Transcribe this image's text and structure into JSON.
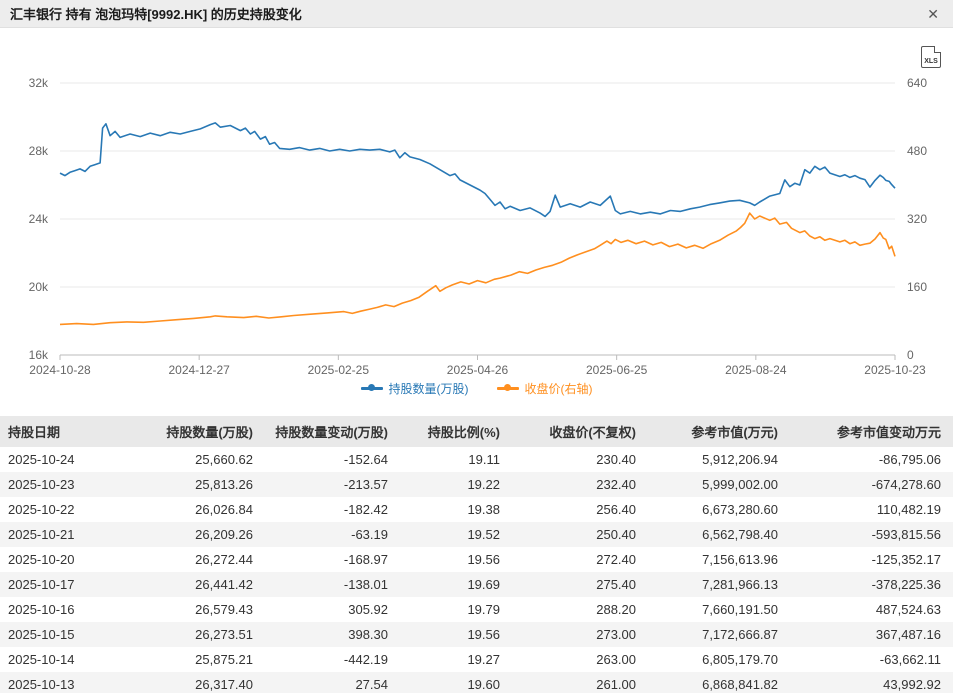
{
  "header": {
    "title": "汇丰银行 持有 泡泡玛特[9992.HK] 的历史持股变化",
    "close_label": "✕"
  },
  "toolbar": {
    "export_label": "XLS"
  },
  "chart_data": {
    "type": "line",
    "x_ticks": [
      "2024-10-28",
      "2024-12-27",
      "2025-02-25",
      "2025-04-26",
      "2025-06-25",
      "2025-08-24",
      "2025-10-23"
    ],
    "left_axis": {
      "ticks": [
        "16k",
        "20k",
        "24k",
        "28k",
        "32k"
      ],
      "min": 16000,
      "max": 32000
    },
    "right_axis": {
      "ticks": [
        "0",
        "160",
        "320",
        "480",
        "640"
      ],
      "min": 0,
      "max": 640
    },
    "grid": true,
    "legend_position": "bottom",
    "legend": [
      {
        "label": "持股数量(万股)",
        "color": "#2878b5"
      },
      {
        "label": "收盘价(右轴)",
        "color": "#ff8f1f"
      }
    ],
    "series": [
      {
        "name": "持股数量(万股)",
        "axis": "left",
        "color": "#2878b5",
        "points": [
          [
            0.0,
            26700
          ],
          [
            0.006,
            26550
          ],
          [
            0.012,
            26750
          ],
          [
            0.018,
            26850
          ],
          [
            0.024,
            26950
          ],
          [
            0.03,
            26800
          ],
          [
            0.036,
            27100
          ],
          [
            0.042,
            27200
          ],
          [
            0.048,
            27300
          ],
          [
            0.051,
            29350
          ],
          [
            0.055,
            29600
          ],
          [
            0.06,
            28900
          ],
          [
            0.066,
            29150
          ],
          [
            0.072,
            28800
          ],
          [
            0.084,
            29000
          ],
          [
            0.096,
            28850
          ],
          [
            0.108,
            29050
          ],
          [
            0.12,
            28900
          ],
          [
            0.132,
            29100
          ],
          [
            0.144,
            29000
          ],
          [
            0.156,
            29150
          ],
          [
            0.168,
            29300
          ],
          [
            0.18,
            29550
          ],
          [
            0.186,
            29650
          ],
          [
            0.192,
            29400
          ],
          [
            0.204,
            29500
          ],
          [
            0.216,
            29200
          ],
          [
            0.222,
            29350
          ],
          [
            0.228,
            29000
          ],
          [
            0.233,
            29150
          ],
          [
            0.24,
            28700
          ],
          [
            0.246,
            28850
          ],
          [
            0.251,
            28400
          ],
          [
            0.257,
            28500
          ],
          [
            0.263,
            28150
          ],
          [
            0.275,
            28100
          ],
          [
            0.287,
            28200
          ],
          [
            0.299,
            28050
          ],
          [
            0.311,
            28150
          ],
          [
            0.323,
            28000
          ],
          [
            0.335,
            28100
          ],
          [
            0.347,
            28000
          ],
          [
            0.359,
            28100
          ],
          [
            0.371,
            28050
          ],
          [
            0.383,
            28100
          ],
          [
            0.395,
            27950
          ],
          [
            0.401,
            28050
          ],
          [
            0.407,
            27600
          ],
          [
            0.413,
            27900
          ],
          [
            0.419,
            27650
          ],
          [
            0.431,
            27500
          ],
          [
            0.443,
            27250
          ],
          [
            0.455,
            26900
          ],
          [
            0.467,
            26550
          ],
          [
            0.473,
            26650
          ],
          [
            0.479,
            26300
          ],
          [
            0.491,
            26000
          ],
          [
            0.503,
            25700
          ],
          [
            0.509,
            25500
          ],
          [
            0.515,
            25150
          ],
          [
            0.521,
            24800
          ],
          [
            0.527,
            25000
          ],
          [
            0.533,
            24600
          ],
          [
            0.539,
            24750
          ],
          [
            0.551,
            24500
          ],
          [
            0.563,
            24650
          ],
          [
            0.575,
            24350
          ],
          [
            0.581,
            24150
          ],
          [
            0.587,
            24450
          ],
          [
            0.593,
            25400
          ],
          [
            0.599,
            24700
          ],
          [
            0.611,
            24900
          ],
          [
            0.623,
            24700
          ],
          [
            0.635,
            25000
          ],
          [
            0.647,
            24800
          ],
          [
            0.659,
            25350
          ],
          [
            0.665,
            24500
          ],
          [
            0.671,
            24300
          ],
          [
            0.683,
            24450
          ],
          [
            0.695,
            24300
          ],
          [
            0.707,
            24400
          ],
          [
            0.719,
            24300
          ],
          [
            0.731,
            24500
          ],
          [
            0.743,
            24450
          ],
          [
            0.755,
            24600
          ],
          [
            0.766,
            24700
          ],
          [
            0.778,
            24850
          ],
          [
            0.79,
            24950
          ],
          [
            0.802,
            25050
          ],
          [
            0.814,
            25100
          ],
          [
            0.826,
            24950
          ],
          [
            0.832,
            24800
          ],
          [
            0.838,
            25000
          ],
          [
            0.85,
            25350
          ],
          [
            0.862,
            25500
          ],
          [
            0.868,
            26300
          ],
          [
            0.874,
            25900
          ],
          [
            0.88,
            26100
          ],
          [
            0.886,
            26000
          ],
          [
            0.892,
            26900
          ],
          [
            0.898,
            26700
          ],
          [
            0.904,
            27100
          ],
          [
            0.91,
            26900
          ],
          [
            0.916,
            27050
          ],
          [
            0.922,
            26700
          ],
          [
            0.934,
            26500
          ],
          [
            0.94,
            26600
          ],
          [
            0.946,
            26450
          ],
          [
            0.952,
            26550
          ],
          [
            0.958,
            26400
          ],
          [
            0.964,
            26317
          ],
          [
            0.97,
            25875
          ],
          [
            0.976,
            26273
          ],
          [
            0.982,
            26579
          ],
          [
            0.986,
            26441
          ],
          [
            0.989,
            26272
          ],
          [
            0.993,
            26209
          ],
          [
            0.996,
            26026
          ],
          [
            1.0,
            25813
          ]
        ]
      },
      {
        "name": "收盘价(右轴)",
        "axis": "right",
        "color": "#ff8f1f",
        "points": [
          [
            0.0,
            72
          ],
          [
            0.02,
            74
          ],
          [
            0.04,
            72
          ],
          [
            0.06,
            76
          ],
          [
            0.08,
            78
          ],
          [
            0.1,
            77
          ],
          [
            0.12,
            80
          ],
          [
            0.14,
            83
          ],
          [
            0.16,
            86
          ],
          [
            0.18,
            90
          ],
          [
            0.186,
            92
          ],
          [
            0.2,
            90
          ],
          [
            0.22,
            88
          ],
          [
            0.235,
            91
          ],
          [
            0.25,
            87
          ],
          [
            0.265,
            90
          ],
          [
            0.28,
            93
          ],
          [
            0.3,
            96
          ],
          [
            0.32,
            99
          ],
          [
            0.34,
            102
          ],
          [
            0.35,
            98
          ],
          [
            0.36,
            103
          ],
          [
            0.371,
            108
          ],
          [
            0.38,
            112
          ],
          [
            0.39,
            118
          ],
          [
            0.4,
            114
          ],
          [
            0.41,
            122
          ],
          [
            0.42,
            128
          ],
          [
            0.43,
            136
          ],
          [
            0.44,
            150
          ],
          [
            0.45,
            163
          ],
          [
            0.455,
            150
          ],
          [
            0.462,
            158
          ],
          [
            0.47,
            165
          ],
          [
            0.48,
            172
          ],
          [
            0.49,
            167
          ],
          [
            0.5,
            175
          ],
          [
            0.51,
            170
          ],
          [
            0.52,
            178
          ],
          [
            0.527,
            181
          ],
          [
            0.54,
            188
          ],
          [
            0.55,
            196
          ],
          [
            0.56,
            192
          ],
          [
            0.57,
            200
          ],
          [
            0.58,
            206
          ],
          [
            0.59,
            211
          ],
          [
            0.6,
            218
          ],
          [
            0.61,
            228
          ],
          [
            0.62,
            236
          ],
          [
            0.63,
            243
          ],
          [
            0.64,
            250
          ],
          [
            0.647,
            258
          ],
          [
            0.655,
            268
          ],
          [
            0.66,
            262
          ],
          [
            0.665,
            272
          ],
          [
            0.672,
            265
          ],
          [
            0.68,
            270
          ],
          [
            0.69,
            262
          ],
          [
            0.7,
            268
          ],
          [
            0.71,
            259
          ],
          [
            0.72,
            265
          ],
          [
            0.73,
            255
          ],
          [
            0.74,
            261
          ],
          [
            0.75,
            252
          ],
          [
            0.76,
            258
          ],
          [
            0.77,
            251
          ],
          [
            0.78,
            262
          ],
          [
            0.79,
            270
          ],
          [
            0.8,
            282
          ],
          [
            0.81,
            292
          ],
          [
            0.815,
            300
          ],
          [
            0.82,
            310
          ],
          [
            0.826,
            334
          ],
          [
            0.832,
            320
          ],
          [
            0.838,
            327
          ],
          [
            0.85,
            317
          ],
          [
            0.856,
            322
          ],
          [
            0.862,
            308
          ],
          [
            0.87,
            312
          ],
          [
            0.876,
            298
          ],
          [
            0.886,
            288
          ],
          [
            0.892,
            292
          ],
          [
            0.898,
            280
          ],
          [
            0.904,
            274
          ],
          [
            0.91,
            278
          ],
          [
            0.916,
            270
          ],
          [
            0.922,
            274
          ],
          [
            0.934,
            266
          ],
          [
            0.94,
            270
          ],
          [
            0.946,
            262
          ],
          [
            0.952,
            266
          ],
          [
            0.958,
            258
          ],
          [
            0.964,
            261
          ],
          [
            0.97,
            263
          ],
          [
            0.976,
            273
          ],
          [
            0.982,
            288
          ],
          [
            0.986,
            275
          ],
          [
            0.989,
            272
          ],
          [
            0.993,
            250
          ],
          [
            0.996,
            256
          ],
          [
            1.0,
            232
          ]
        ]
      }
    ]
  },
  "table": {
    "headers": [
      "持股日期",
      "持股数量(万股)",
      "持股数量变动(万股)",
      "持股比例(%)",
      "收盘价(不复权)",
      "参考市值(万元)",
      "参考市值变动万元"
    ],
    "rows": [
      [
        "2025-10-24",
        "25,660.62",
        "-152.64",
        "19.11",
        "230.40",
        "5,912,206.94",
        "-86,795.06"
      ],
      [
        "2025-10-23",
        "25,813.26",
        "-213.57",
        "19.22",
        "232.40",
        "5,999,002.00",
        "-674,278.60"
      ],
      [
        "2025-10-22",
        "26,026.84",
        "-182.42",
        "19.38",
        "256.40",
        "6,673,280.60",
        "110,482.19"
      ],
      [
        "2025-10-21",
        "26,209.26",
        "-63.19",
        "19.52",
        "250.40",
        "6,562,798.40",
        "-593,815.56"
      ],
      [
        "2025-10-20",
        "26,272.44",
        "-168.97",
        "19.56",
        "272.40",
        "7,156,613.96",
        "-125,352.17"
      ],
      [
        "2025-10-17",
        "26,441.42",
        "-138.01",
        "19.69",
        "275.40",
        "7,281,966.13",
        "-378,225.36"
      ],
      [
        "2025-10-16",
        "26,579.43",
        "305.92",
        "19.79",
        "288.20",
        "7,660,191.50",
        "487,524.63"
      ],
      [
        "2025-10-15",
        "26,273.51",
        "398.30",
        "19.56",
        "273.00",
        "7,172,666.87",
        "367,487.16"
      ],
      [
        "2025-10-14",
        "25,875.21",
        "-442.19",
        "19.27",
        "263.00",
        "6,805,179.70",
        "-63,662.11"
      ],
      [
        "2025-10-13",
        "26,317.40",
        "27.54",
        "19.60",
        "261.00",
        "6,868,841.82",
        "43,992.92"
      ]
    ]
  }
}
